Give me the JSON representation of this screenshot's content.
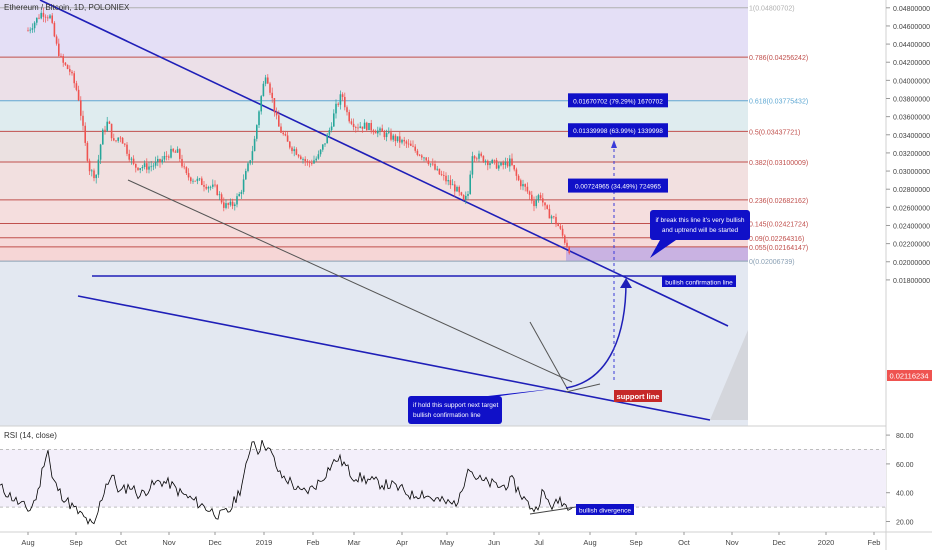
{
  "chart_data": [
    {
      "type": "candlestick",
      "title": "Ethereum / Bitcoin, 1D, POLONIEX",
      "price_axis": {
        "ticks": [
          "0.04800000",
          "0.04600000",
          "0.04400000",
          "0.04200000",
          "0.04000000",
          "0.03800000",
          "0.03600000",
          "0.03400000",
          "0.03200000",
          "0.03000000",
          "0.02800000",
          "0.02600000",
          "0.02400000",
          "0.02200000",
          "0.02000000",
          "0.01800000"
        ],
        "range": [
          0.0175,
          0.0495
        ],
        "last_price_label": "0.02116234",
        "last_price": 0.02116234
      },
      "time_axis": {
        "labels": [
          "Aug",
          "Sep",
          "Oct",
          "Nov",
          "Dec",
          "2019",
          "Feb",
          "Mar",
          "Apr",
          "May",
          "Jun",
          "Jul",
          "Aug",
          "Sep",
          "Oct",
          "Nov",
          "Dec",
          "2020",
          "Feb"
        ]
      },
      "fib_levels": [
        {
          "label": "1(0.04800702)",
          "price": 0.04800702,
          "color": "#b0b0b0"
        },
        {
          "label": "0.786(0.04256242)",
          "price": 0.04256242,
          "color": "#c0504d"
        },
        {
          "label": "0.618(0.03775432)",
          "price": 0.03775432,
          "color": "#5fa8d3"
        },
        {
          "label": "0.5(0.03437721)",
          "price": 0.03437721,
          "color": "#c0504d"
        },
        {
          "label": "0.382(0.03100009)",
          "price": 0.03100009,
          "color": "#c0504d"
        },
        {
          "label": "0.236(0.02682162)",
          "price": 0.02682162,
          "color": "#c0504d"
        },
        {
          "label": "0.145(0.02421724)",
          "price": 0.02421724,
          "color": "#c0504d"
        },
        {
          "label": "0.09(0.02264316)",
          "price": 0.02264316,
          "color": "#c0504d"
        },
        {
          "label": "0.055(0.02164147)",
          "price": 0.02164147,
          "color": "#c0504d"
        },
        {
          "label": "0(0.02006739)",
          "price": 0.02006739,
          "color": "#8aa0b4"
        }
      ],
      "targets": [
        {
          "text": "0.01670702 (79.29%) 1670702",
          "price": 0.0378
        },
        {
          "text": "0.01339998 (63.99%) 1339998",
          "price": 0.0345
        },
        {
          "text": "0.00724965 (34.49%) 724965",
          "price": 0.0284
        }
      ],
      "annotations": [
        {
          "id": "bullish-note",
          "text": [
            "if break this line it's very bullish",
            "and uptrend will be started"
          ]
        },
        {
          "id": "support-note",
          "text": [
            "if hold this support next target",
            "bullish confirmation line"
          ]
        }
      ],
      "labels": {
        "bullish_confirmation": "bullish confirmation line",
        "support": "support line"
      }
    },
    {
      "type": "line",
      "title": "RSI (14, close)",
      "y_ticks": [
        "80.00",
        "60.00",
        "40.00",
        "20.00"
      ],
      "ylim": [
        10,
        88
      ],
      "divergence_label": "bullish divergence"
    }
  ],
  "colors": {
    "up": "#26a69a",
    "down": "#ef5350",
    "trendline": "#1f1fb8",
    "label_blue": "#1010c8",
    "label_red": "#c62828",
    "rsi_line": "#000000"
  }
}
